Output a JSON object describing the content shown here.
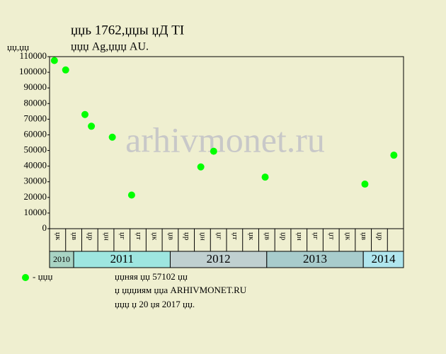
{
  "chart_data": {
    "type": "scatter",
    "title": "џџь 1762,џџы џД TI",
    "subtitle": "џџџ Ag,џџџ AU.",
    "y_label": "џџ,џџ",
    "watermark": "arhivmonet.ru",
    "categories": [
      "џк",
      "џв",
      "џр",
      "џн",
      "џг",
      "џт",
      "џк",
      "џв",
      "џр",
      "џн",
      "џг",
      "џт",
      "џк",
      "џв",
      "џр",
      "џн",
      "џг",
      "џт",
      "џк",
      "џв",
      "џр"
    ],
    "years": [
      "2010",
      "2011",
      "2012",
      "2013",
      "2014"
    ],
    "xlim": [
      0,
      22
    ],
    "ylim": [
      0,
      110000
    ],
    "yticks": [
      0,
      10000,
      20000,
      30000,
      40000,
      50000,
      60000,
      70000,
      80000,
      90000,
      100000,
      110000
    ],
    "series": [
      {
        "name": "- џџџ",
        "color": "#00ff00",
        "x": [
          0.3,
          1.0,
          2.2,
          2.6,
          3.9,
          5.1,
          9.4,
          10.2,
          13.4,
          19.6,
          21.4
        ],
        "values": [
          107500,
          101500,
          73000,
          65500,
          58500,
          21500,
          39500,
          49500,
          33000,
          28500,
          47000
        ]
      }
    ],
    "notes": [
      "џџняя џџ 57102 џџ",
      "џ џџџиям џџа ARHIVMONET.RU",
      "џџџ џ 20 џя 2017 џџ."
    ]
  }
}
